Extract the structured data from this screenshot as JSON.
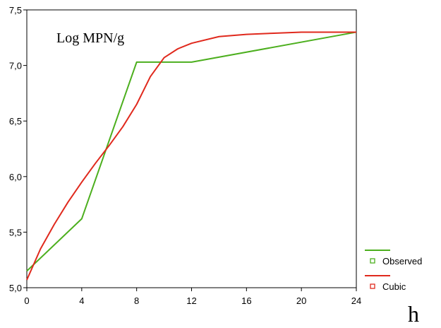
{
  "chart_data": {
    "type": "line",
    "annotation": "Log MPN/g",
    "xlabel": "h",
    "ylabel": "",
    "xlim": [
      0,
      24
    ],
    "ylim": [
      5.0,
      7.5
    ],
    "x_ticks": [
      "0",
      "4",
      "8",
      "12",
      "16",
      "20",
      "24"
    ],
    "y_ticks": [
      "5,0",
      "5,5",
      "6,0",
      "6,5",
      "7,0",
      "7,5"
    ],
    "grid": false,
    "legend_position": "bottom-right",
    "series": [
      {
        "name": "Observed",
        "color": "#4caf1e",
        "x": [
          0,
          4,
          8,
          12,
          24
        ],
        "y": [
          5.15,
          5.62,
          7.03,
          7.03,
          7.3
        ]
      },
      {
        "name": "Cubic",
        "color": "#e0291d",
        "x": [
          0,
          1,
          2,
          3,
          4,
          5,
          6,
          7,
          8,
          9,
          10,
          11,
          12,
          14,
          16,
          18,
          20,
          22,
          24
        ],
        "y": [
          5.07,
          5.35,
          5.57,
          5.77,
          5.95,
          6.12,
          6.28,
          6.45,
          6.65,
          6.9,
          7.07,
          7.15,
          7.2,
          7.26,
          7.28,
          7.29,
          7.3,
          7.3,
          7.3
        ]
      }
    ]
  }
}
